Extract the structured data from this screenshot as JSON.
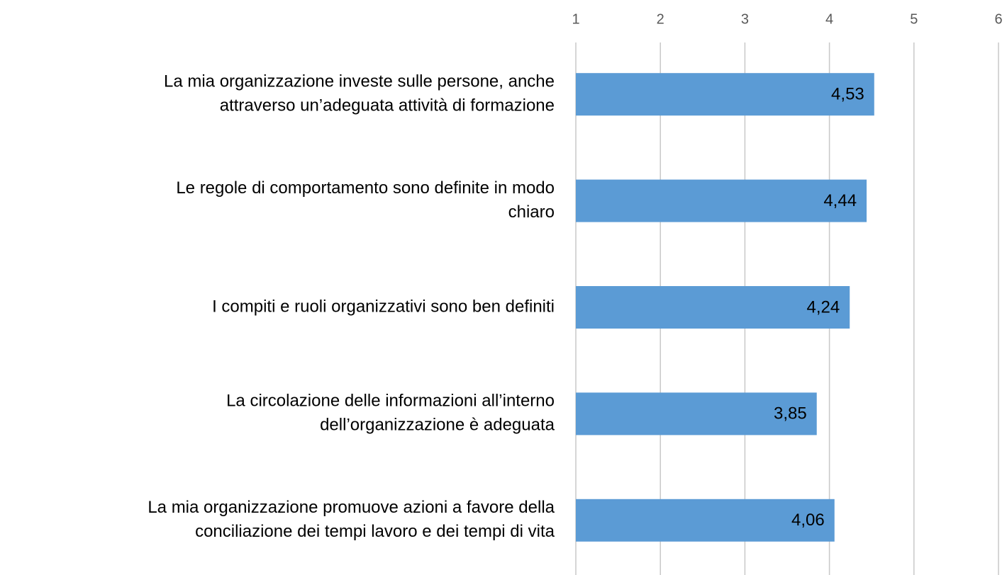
{
  "chart_data": {
    "type": "hbar",
    "categories": [
      [
        "La mia organizzazione investe sulle persone, anche",
        "attraverso un’adeguata attività di formazione"
      ],
      [
        "Le regole di comportamento sono definite in modo",
        "chiaro"
      ],
      [
        "I compiti e ruoli organizzativi sono ben definiti"
      ],
      [
        "La circolazione delle informazioni all’interno",
        "dell’organizzazione è adeguata"
      ],
      [
        "La mia organizzazione promuove azioni a favore della",
        "conciliazione dei tempi lavoro e dei tempi di vita"
      ]
    ],
    "values": [
      4.53,
      4.44,
      4.24,
      3.85,
      4.06
    ],
    "value_labels": [
      "4,53",
      "4,44",
      "4,24",
      "3,85",
      "4,06"
    ],
    "color": "#5b9bd5",
    "xlim": [
      1,
      6
    ],
    "xticks": [
      1,
      2,
      3,
      4,
      5,
      6
    ],
    "grid": true
  }
}
